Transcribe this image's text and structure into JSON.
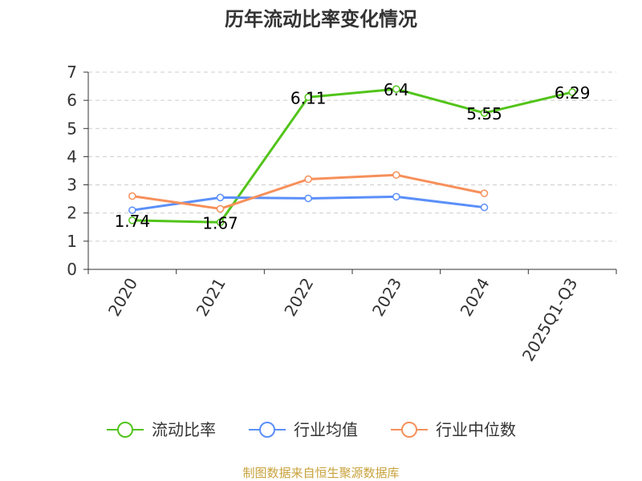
{
  "chart_data": {
    "type": "line",
    "title": "历年流动比率变化情况",
    "categories": [
      "2020",
      "2021",
      "2022",
      "2023",
      "2024",
      "2025Q1-Q3"
    ],
    "ylim": [
      0,
      7
    ],
    "y_ticks": [
      "0",
      "1",
      "2",
      "3",
      "4",
      "5",
      "6",
      "7"
    ],
    "grid": true,
    "legend_position": "bottom",
    "series": [
      {
        "name": "流动比率",
        "color": "#52c41a",
        "values": [
          1.74,
          1.67,
          6.11,
          6.4,
          5.55,
          6.29
        ],
        "labels": [
          "1.74",
          "1.67",
          "6.11",
          "6.4",
          "5.55",
          "6.29"
        ]
      },
      {
        "name": "行业均值",
        "color": "#5b8ff9",
        "values": [
          2.1,
          2.55,
          2.52,
          2.58,
          2.2,
          null
        ]
      },
      {
        "name": "行业中位数",
        "color": "#f6905b",
        "values": [
          2.6,
          2.15,
          3.2,
          3.35,
          2.7,
          null
        ]
      }
    ]
  },
  "source_note": "制图数据来自恒生聚源数据库",
  "colors": {
    "axis": "#333333",
    "grid": "#cccccc",
    "source": "#c8a23c"
  }
}
